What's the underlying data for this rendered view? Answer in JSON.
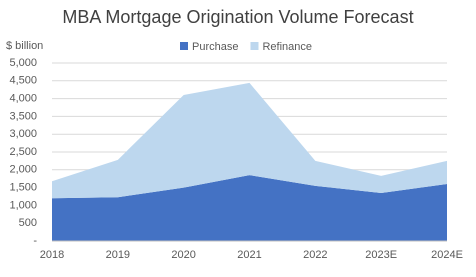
{
  "chart_data": {
    "type": "stacked-area",
    "title": "MBA Mortgage Origination Volume Forecast",
    "y_label": "$ billion",
    "categories": [
      "2018",
      "2019",
      "2020",
      "2021",
      "2022",
      "2023E",
      "2024E"
    ],
    "series": [
      {
        "name": "Purchase",
        "color": "#4472c4",
        "values": [
          1200,
          1230,
          1500,
          1850,
          1550,
          1350,
          1600
        ]
      },
      {
        "name": "Refinance",
        "color": "#bdd7ee",
        "values": [
          480,
          1050,
          2600,
          2590,
          700,
          480,
          650
        ]
      }
    ],
    "ylim": [
      0,
      5000
    ],
    "yticks": [
      {
        "value": 0,
        "label": "-"
      },
      500,
      {
        "value": 1000,
        "label": "1,000"
      },
      {
        "value": 1500,
        "label": "1,500"
      },
      {
        "value": 2000,
        "label": "2,000"
      },
      {
        "value": 2500,
        "label": "2,500"
      },
      {
        "value": 3000,
        "label": "3,000"
      },
      {
        "value": 3500,
        "label": "3,500"
      },
      {
        "value": 4000,
        "label": "4,000"
      },
      {
        "value": 4500,
        "label": "4,500"
      },
      {
        "value": 5000,
        "label": "5,000"
      }
    ],
    "grid": true,
    "legend": "top"
  }
}
